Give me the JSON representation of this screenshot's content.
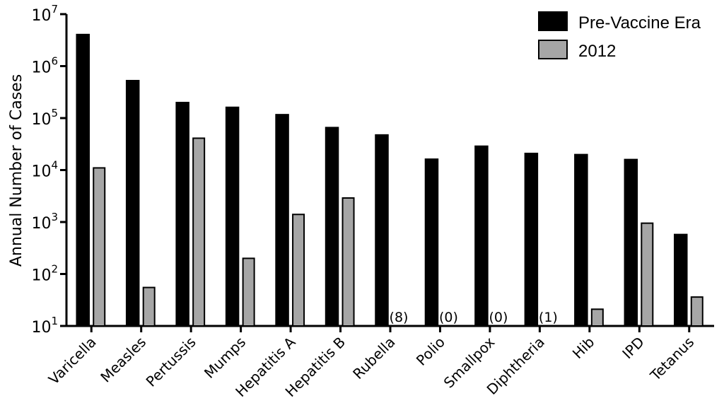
{
  "chart_data": {
    "type": "bar",
    "ylabel": "Annual Number of Cases",
    "yscale": "log",
    "ylim": [
      10,
      10000000
    ],
    "yticks": [
      {
        "value": 10,
        "base": "10",
        "exp": "1"
      },
      {
        "value": 100,
        "base": "10",
        "exp": "2"
      },
      {
        "value": 1000,
        "base": "10",
        "exp": "3"
      },
      {
        "value": 10000,
        "base": "10",
        "exp": "4"
      },
      {
        "value": 100000,
        "base": "10",
        "exp": "5"
      },
      {
        "value": 1000000,
        "base": "10",
        "exp": "6"
      },
      {
        "value": 10000000,
        "base": "10",
        "exp": "7"
      }
    ],
    "categories": [
      "Varicella",
      "Measles",
      "Pertussis",
      "Mumps",
      "Hepatitis A",
      "Hepatitis B",
      "Rubella",
      "Polio",
      "Smallpox",
      "Diphtheria",
      "Hib",
      "IPD",
      "Tetanus"
    ],
    "series": [
      {
        "name": "Pre-Vaccine Era",
        "color": "#000000",
        "values": [
          4085120,
          530217,
          200752,
          162344,
          117333,
          66232,
          47745,
          16316,
          29005,
          21053,
          20000,
          16069,
          580
        ]
      },
      {
        "name": "2012",
        "color": "#a6a6a6",
        "values": [
          11000,
          55,
          41000,
          200,
          1400,
          2900,
          null,
          null,
          null,
          null,
          21,
          950,
          36
        ]
      }
    ],
    "zero_labels": [
      "(8)",
      "(0)",
      "(0)",
      "(1)"
    ],
    "legend_position": "top-right",
    "grid": false
  }
}
